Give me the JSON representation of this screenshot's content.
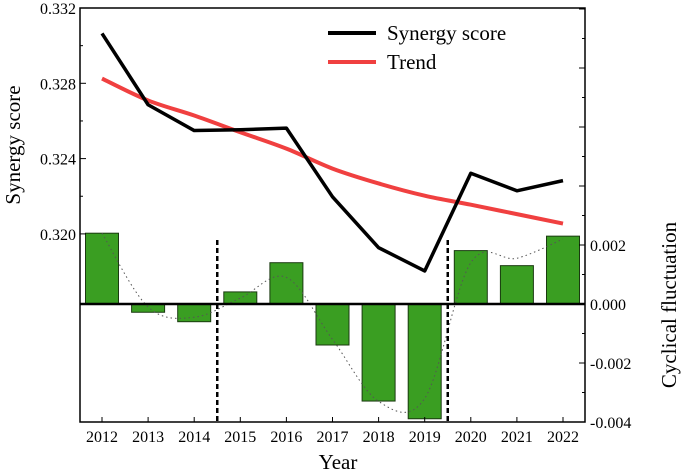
{
  "chart_data": {
    "type": "bar+line",
    "xlabel": "Year",
    "ylabel_left": "Synergy score",
    "ylabel_right": "Cyclical fluctuation",
    "categories": [
      "2012",
      "2013",
      "2014",
      "2015",
      "2016",
      "2017",
      "2018",
      "2019",
      "2020",
      "2021",
      "2022"
    ],
    "ylim_left": [
      0.3176,
      0.332
    ],
    "yticks_left": [
      "0.320",
      "0.324",
      "0.328",
      "0.332"
    ],
    "ylim_right": [
      -0.004,
      0.0051
    ],
    "yticks_right": [
      "-0.004",
      "-0.002",
      "0.000",
      "0.002"
    ],
    "series": [
      {
        "name": "Synergy score",
        "type": "line",
        "axis": "left",
        "color": "#000000",
        "values": [
          0.33065,
          0.32686,
          0.32549,
          0.32553,
          0.32562,
          0.32197,
          0.31927,
          0.31803,
          0.32322,
          0.32229,
          0.32283
        ]
      },
      {
        "name": "Trend",
        "type": "line",
        "axis": "left",
        "color": "#f04040",
        "values": [
          0.32825,
          0.32709,
          0.32629,
          0.3254,
          0.32453,
          0.32347,
          0.32268,
          0.32203,
          0.32155,
          0.32105,
          0.32055
        ]
      },
      {
        "type": "bar",
        "axis": "right",
        "color": "#3a9e22",
        "values": [
          0.0024,
          -0.00028,
          -0.0006,
          0.00041,
          0.0014,
          -0.00139,
          -0.00329,
          -0.00389,
          0.00181,
          0.0013,
          0.0023
        ]
      },
      {
        "type": "dotted-curve",
        "axis": "right",
        "color": "#555555",
        "values": [
          0.0024,
          -0.0001,
          -0.00045,
          0.0002,
          0.0009,
          -0.0012,
          -0.0033,
          -0.0032,
          0.0014,
          0.00155,
          0.0022
        ]
      }
    ],
    "dividers": [
      2014.5,
      2019.5
    ],
    "legend": {
      "placement": "top-right",
      "entries": [
        "Synergy score",
        "Trend"
      ]
    },
    "grid": false
  }
}
